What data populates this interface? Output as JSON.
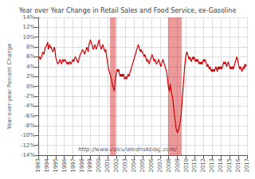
{
  "chart_data": {
    "type": "line",
    "title": "Year over Year Change in Retail Sales and Food Service, ex-Gasoline",
    "ylabel": "Year-over-year Percent Change",
    "annotation": "http://www.calculatedriskblog.com/",
    "color": "#cc0000",
    "grid": true,
    "xlim": [
      1993,
      2017
    ],
    "xticks": [
      1993,
      1994,
      1995,
      1996,
      1997,
      1998,
      1999,
      2000,
      2001,
      2002,
      2003,
      2004,
      2005,
      2006,
      2007,
      2008,
      2009,
      2010,
      2011,
      2012,
      2013,
      2014,
      2015,
      2016,
      2017
    ],
    "ylim": [
      -14,
      14
    ],
    "yticks": [
      {
        "value": -14,
        "label": "-14%"
      },
      {
        "value": -12,
        "label": "-12%"
      },
      {
        "value": -10,
        "label": "-10%"
      },
      {
        "value": -8,
        "label": "-8%"
      },
      {
        "value": -6,
        "label": "-6%"
      },
      {
        "value": -4,
        "label": "-4%"
      },
      {
        "value": -2,
        "label": "-2%"
      },
      {
        "value": 0,
        "label": "0%"
      },
      {
        "value": 2,
        "label": "2%"
      },
      {
        "value": 4,
        "label": "4%"
      },
      {
        "value": 6,
        "label": "6%"
      },
      {
        "value": 8,
        "label": "8%"
      },
      {
        "value": 10,
        "label": "10%"
      },
      {
        "value": 12,
        "label": "12%"
      },
      {
        "value": 14,
        "label": "14%"
      }
    ],
    "recessions": [
      [
        2001.25,
        2001.92
      ],
      [
        2007.92,
        2009.5
      ]
    ],
    "x": [
      1993.0,
      1993.08,
      1993.17,
      1993.25,
      1993.33,
      1993.42,
      1993.5,
      1993.58,
      1993.67,
      1993.75,
      1993.83,
      1993.92,
      1994.0,
      1994.08,
      1994.17,
      1994.25,
      1994.33,
      1994.42,
      1994.5,
      1994.58,
      1994.67,
      1994.75,
      1994.83,
      1994.92,
      1995.0,
      1995.08,
      1995.17,
      1995.25,
      1995.33,
      1995.42,
      1995.5,
      1995.58,
      1995.67,
      1995.75,
      1995.83,
      1995.92,
      1996.0,
      1996.08,
      1996.17,
      1996.25,
      1996.33,
      1996.42,
      1996.5,
      1996.58,
      1996.67,
      1996.75,
      1996.83,
      1996.92,
      1997.0,
      1997.08,
      1997.17,
      1997.25,
      1997.33,
      1997.42,
      1997.5,
      1997.58,
      1997.67,
      1997.75,
      1997.83,
      1997.92,
      1998.0,
      1998.08,
      1998.17,
      1998.25,
      1998.33,
      1998.42,
      1998.5,
      1998.58,
      1998.67,
      1998.75,
      1998.83,
      1998.92,
      1999.0,
      1999.08,
      1999.17,
      1999.25,
      1999.33,
      1999.42,
      1999.5,
      1999.58,
      1999.67,
      1999.75,
      1999.83,
      1999.92,
      2000.0,
      2000.08,
      2000.17,
      2000.25,
      2000.33,
      2000.42,
      2000.5,
      2000.58,
      2000.67,
      2000.75,
      2000.83,
      2000.92,
      2001.0,
      2001.08,
      2001.17,
      2001.25,
      2001.33,
      2001.42,
      2001.5,
      2001.58,
      2001.67,
      2001.75,
      2001.83,
      2001.92,
      2002.0,
      2002.08,
      2002.17,
      2002.25,
      2002.33,
      2002.42,
      2002.5,
      2002.58,
      2002.67,
      2002.75,
      2002.83,
      2002.92,
      2003.0,
      2003.08,
      2003.17,
      2003.25,
      2003.33,
      2003.42,
      2003.5,
      2003.58,
      2003.67,
      2003.75,
      2003.83,
      2003.92,
      2004.0,
      2004.08,
      2004.17,
      2004.25,
      2004.33,
      2004.42,
      2004.5,
      2004.58,
      2004.67,
      2004.75,
      2004.83,
      2004.92,
      2005.0,
      2005.08,
      2005.17,
      2005.25,
      2005.33,
      2005.42,
      2005.5,
      2005.58,
      2005.67,
      2005.75,
      2005.83,
      2005.92,
      2006.0,
      2006.08,
      2006.17,
      2006.25,
      2006.33,
      2006.42,
      2006.5,
      2006.58,
      2006.67,
      2006.75,
      2006.83,
      2006.92,
      2007.0,
      2007.08,
      2007.17,
      2007.25,
      2007.33,
      2007.42,
      2007.5,
      2007.58,
      2007.67,
      2007.75,
      2007.83,
      2007.92,
      2008.0,
      2008.08,
      2008.17,
      2008.25,
      2008.33,
      2008.42,
      2008.5,
      2008.58,
      2008.67,
      2008.75,
      2008.83,
      2008.92,
      2009.0,
      2009.08,
      2009.17,
      2009.25,
      2009.33,
      2009.42,
      2009.5,
      2009.58,
      2009.67,
      2009.75,
      2009.83,
      2009.92,
      2010.0,
      2010.08,
      2010.17,
      2010.25,
      2010.33,
      2010.42,
      2010.5,
      2010.58,
      2010.67,
      2010.75,
      2010.83,
      2010.92,
      2011.0,
      2011.08,
      2011.17,
      2011.25,
      2011.33,
      2011.42,
      2011.5,
      2011.58,
      2011.67,
      2011.75,
      2011.83,
      2011.92,
      2012.0,
      2012.08,
      2012.17,
      2012.25,
      2012.33,
      2012.42,
      2012.5,
      2012.58,
      2012.67,
      2012.75,
      2012.83,
      2012.92,
      2013.0,
      2013.08,
      2013.17,
      2013.25,
      2013.33,
      2013.42,
      2013.5,
      2013.58,
      2013.67,
      2013.75,
      2013.83,
      2013.92,
      2014.0,
      2014.08,
      2014.17,
      2014.25,
      2014.33,
      2014.42,
      2014.5,
      2014.58,
      2014.67,
      2014.75,
      2014.83,
      2014.92,
      2015.0,
      2015.08,
      2015.17,
      2015.25,
      2015.33,
      2015.42,
      2015.5,
      2015.58,
      2015.67,
      2015.75,
      2015.83,
      2015.92,
      2016.0,
      2016.08,
      2016.17,
      2016.25,
      2016.33,
      2016.42,
      2016.5,
      2016.58,
      2016.67,
      2016.75,
      2016.83,
      2016.92
    ],
    "values": [
      5.5,
      5.8,
      6.0,
      5.5,
      5.8,
      6.2,
      7.0,
      6.8,
      6.5,
      7.5,
      8.0,
      8.2,
      8.5,
      9.0,
      7.5,
      8.0,
      8.5,
      7.8,
      8.0,
      7.5,
      7.0,
      7.2,
      8.0,
      7.5,
      6.0,
      5.5,
      5.0,
      4.5,
      4.8,
      5.0,
      5.5,
      5.2,
      4.5,
      5.0,
      5.5,
      5.0,
      5.2,
      5.5,
      5.0,
      4.8,
      4.5,
      5.0,
      4.5,
      4.8,
      5.0,
      4.5,
      4.8,
      5.2,
      5.5,
      5.0,
      5.5,
      6.0,
      5.8,
      5.5,
      5.0,
      4.8,
      5.5,
      6.0,
      6.5,
      6.8,
      7.0,
      7.5,
      7.2,
      7.0,
      6.5,
      7.0,
      7.5,
      8.0,
      7.5,
      7.0,
      8.5,
      9.0,
      9.5,
      9.0,
      8.5,
      8.0,
      7.5,
      8.0,
      8.5,
      8.0,
      7.5,
      8.0,
      8.5,
      9.0,
      9.5,
      8.5,
      8.0,
      7.5,
      8.0,
      8.5,
      8.0,
      7.5,
      7.0,
      7.5,
      6.5,
      5.5,
      4.5,
      3.5,
      3.0,
      2.5,
      2.0,
      1.5,
      0.5,
      0.0,
      -0.5,
      -1.0,
      1.0,
      2.0,
      3.0,
      3.5,
      3.0,
      3.5,
      2.5,
      2.0,
      2.5,
      2.0,
      2.5,
      2.0,
      2.5,
      1.5,
      1.5,
      2.0,
      1.5,
      2.0,
      2.5,
      2.0,
      2.5,
      3.0,
      3.5,
      4.0,
      4.5,
      5.0,
      5.5,
      6.0,
      6.5,
      7.0,
      7.5,
      8.0,
      8.5,
      8.0,
      7.5,
      7.0,
      7.5,
      7.0,
      7.0,
      6.5,
      6.0,
      6.5,
      6.0,
      5.5,
      5.0,
      5.5,
      5.0,
      4.5,
      5.0,
      5.5,
      6.0,
      6.5,
      6.0,
      5.5,
      5.0,
      5.5,
      5.0,
      4.5,
      4.8,
      5.0,
      5.5,
      5.0,
      4.5,
      4.0,
      4.5,
      5.0,
      5.5,
      5.0,
      4.5,
      4.0,
      3.5,
      3.0,
      2.0,
      0.5,
      -0.5,
      -1.0,
      0.5,
      -0.5,
      -1.5,
      -2.0,
      -3.0,
      -4.5,
      -6.0,
      -7.0,
      -8.5,
      -9.0,
      -9.5,
      -9.0,
      -8.5,
      -8.0,
      -7.0,
      -6.0,
      -4.0,
      -2.0,
      0.0,
      2.0,
      4.0,
      5.5,
      6.5,
      7.0,
      6.5,
      6.0,
      5.5,
      6.0,
      5.5,
      5.0,
      5.5,
      6.0,
      5.5,
      6.0,
      5.5,
      5.0,
      5.5,
      5.0,
      5.5,
      5.0,
      4.5,
      5.0,
      4.5,
      5.0,
      4.5,
      5.0,
      5.5,
      5.0,
      5.5,
      5.0,
      4.5,
      4.0,
      4.5,
      4.0,
      3.5,
      4.0,
      3.5,
      3.0,
      3.5,
      3.0,
      3.5,
      3.0,
      3.5,
      4.0,
      3.5,
      3.0,
      4.0,
      3.5,
      4.0,
      3.5,
      4.0,
      3.5,
      4.0,
      4.5,
      5.0,
      4.5,
      5.0,
      4.5,
      4.0,
      4.5,
      5.0,
      4.5,
      4.0,
      3.5,
      4.0,
      3.5,
      4.0,
      3.5,
      4.0,
      4.5,
      5.0,
      5.5,
      6.0,
      5.5,
      4.5,
      4.0,
      3.5,
      4.0,
      3.5,
      3.0,
      3.5,
      4.0,
      3.5,
      4.5,
      4.0,
      4.5
    ]
  }
}
